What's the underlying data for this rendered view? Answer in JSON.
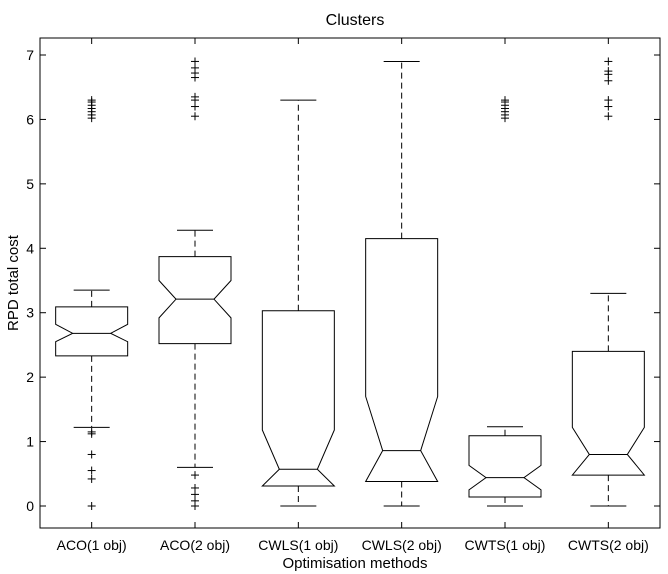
{
  "chart_data": {
    "type": "boxplot",
    "title": "Clusters",
    "xlabel": "Optimisation methods",
    "ylabel": "RPD total cost",
    "ylim": [
      -0.35,
      7.3
    ],
    "yticks": [
      0,
      1,
      2,
      3,
      4,
      5,
      6,
      7
    ],
    "notched": true,
    "grid": false,
    "categories": [
      "ACO(1 obj)",
      "ACO(2 obj)",
      "CWLS(1 obj)",
      "CWLS(2 obj)",
      "CWTS(1 obj)",
      "CWTS(2 obj)"
    ],
    "boxes": [
      {
        "name": "ACO(1 obj)",
        "whisker_low": 1.22,
        "q1": 2.33,
        "median": 2.68,
        "q3": 3.09,
        "whisker_high": 3.35,
        "notch_low": 2.55,
        "notch_high": 2.82,
        "outliers": [
          0.0,
          0.42,
          0.55,
          0.8,
          1.12,
          1.15,
          6.02,
          6.07,
          6.12,
          6.17,
          6.22,
          6.27,
          6.3
        ]
      },
      {
        "name": "ACO(2 obj)",
        "whisker_low": 0.6,
        "q1": 2.52,
        "median": 3.21,
        "q3": 3.87,
        "whisker_high": 4.28,
        "notch_low": 2.92,
        "notch_high": 3.5,
        "outliers": [
          0.0,
          0.08,
          0.18,
          0.28,
          0.48,
          6.05,
          6.2,
          6.3,
          6.35,
          6.65,
          6.72,
          6.8,
          6.9
        ]
      },
      {
        "name": "CWLS(1 obj)",
        "whisker_low": 0.0,
        "q1": 0.31,
        "median": 0.57,
        "q3": 3.03,
        "whisker_high": 6.3,
        "notch_low": 0.0,
        "notch_high": 1.18,
        "outliers": []
      },
      {
        "name": "CWLS(2 obj)",
        "whisker_low": 0.0,
        "q1": 0.38,
        "median": 0.86,
        "q3": 4.15,
        "whisker_high": 6.9,
        "notch_low": 0.0,
        "notch_high": 1.7,
        "outliers": []
      },
      {
        "name": "CWTS(1 obj)",
        "whisker_low": 0.0,
        "q1": 0.14,
        "median": 0.44,
        "q3": 1.09,
        "whisker_high": 1.23,
        "notch_low": 0.25,
        "notch_high": 0.63,
        "outliers": [
          6.02,
          6.07,
          6.12,
          6.17,
          6.22,
          6.27,
          6.3
        ]
      },
      {
        "name": "CWTS(2 obj)",
        "whisker_low": 0.0,
        "q1": 0.48,
        "median": 0.8,
        "q3": 2.4,
        "whisker_high": 3.3,
        "notch_low": 0.4,
        "notch_high": 1.22,
        "outliers": [
          6.05,
          6.2,
          6.3,
          6.6,
          6.7,
          6.75,
          6.9
        ]
      }
    ]
  }
}
